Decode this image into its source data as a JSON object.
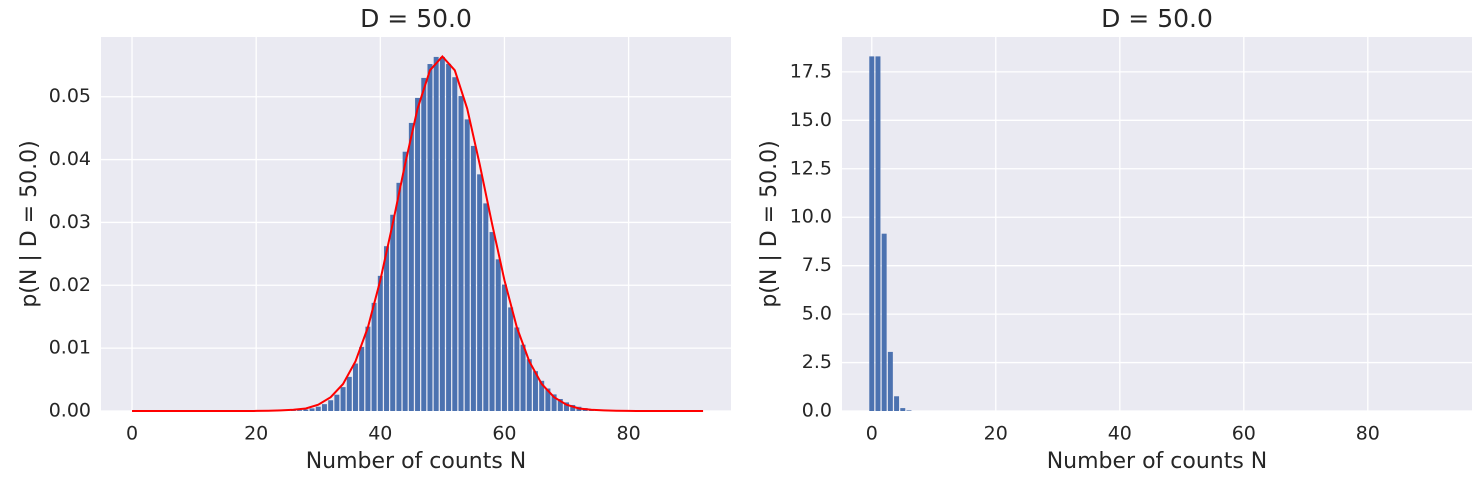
{
  "chart_data": [
    {
      "type": "bar",
      "title": "D = 50.0",
      "xlabel": "Number of counts N",
      "ylabel": "p(N | D = 50.0)",
      "xlim": [
        -5,
        96.5
      ],
      "ylim": [
        0,
        0.0595
      ],
      "xticks": [
        0,
        20,
        40,
        60,
        80
      ],
      "yticks": [
        {
          "value": 0,
          "label": "0.00"
        },
        0.01,
        0.02,
        0.03,
        0.04,
        0.05
      ],
      "grid": true,
      "series": [
        {
          "type": "bar",
          "color": "#4c72b0",
          "x": [
            23,
            24,
            25,
            26,
            27,
            28,
            29,
            30,
            31,
            32,
            33,
            34,
            35,
            36,
            37,
            38,
            39,
            40,
            41,
            42,
            43,
            44,
            45,
            46,
            47,
            48,
            49,
            50,
            51,
            52,
            53,
            54,
            55,
            56,
            57,
            58,
            59,
            60,
            61,
            62,
            63,
            64,
            65,
            66,
            67,
            68,
            69,
            70,
            71,
            72,
            73,
            74,
            75,
            76,
            77,
            78,
            79,
            80,
            81,
            82
          ],
          "values": [
            1e-05,
            2e-05,
            4e-05,
            7e-05,
            0.00013,
            0.00024,
            0.00041,
            0.00068,
            0.00109,
            0.00171,
            0.00259,
            0.0038,
            0.00543,
            0.00755,
            0.0102,
            0.01342,
            0.0172,
            0.0215,
            0.02622,
            0.03122,
            0.0363,
            0.04125,
            0.04583,
            0.04981,
            0.05299,
            0.0552,
            0.05633,
            0.05633,
            0.05523,
            0.0531,
            0.0501,
            0.04639,
            0.04217,
            0.03765,
            0.03303,
            0.02847,
            0.02413,
            0.02011,
            0.01648,
            0.01329,
            0.01055,
            0.00824,
            0.00634,
            0.0048,
            0.00358,
            0.00264,
            0.00191,
            0.00137,
            0.00096,
            0.00067,
            0.00046,
            0.00031,
            0.00021,
            0.00014,
            9e-05,
            6e-05,
            4e-05,
            2e-05,
            1e-05,
            1e-05
          ]
        },
        {
          "type": "line",
          "color": "#ff0000",
          "x": [
            0,
            2,
            4,
            6,
            8,
            10,
            12,
            14,
            16,
            18,
            20,
            22,
            24,
            26,
            28,
            30,
            32,
            34,
            36,
            38,
            40,
            42,
            44,
            46,
            48,
            50,
            52,
            54,
            56,
            58,
            60,
            62,
            64,
            66,
            68,
            70,
            72,
            74,
            76,
            78,
            80,
            82,
            84,
            86,
            88,
            90,
            92
          ],
          "values": [
            0,
            0,
            0,
            0,
            0,
            0,
            0,
            0,
            0,
            0,
            1e-05,
            4e-05,
            0.0001,
            0.0002,
            0.0004,
            0.001,
            0.0022,
            0.0043,
            0.0079,
            0.0133,
            0.0208,
            0.0298,
            0.0393,
            0.0481,
            0.0542,
            0.0564,
            0.0542,
            0.0481,
            0.0393,
            0.0298,
            0.0208,
            0.0133,
            0.0079,
            0.0043,
            0.0022,
            0.001,
            0.0004,
            0.0002,
            0.0001,
            4e-05,
            1e-05,
            0,
            0,
            0,
            0,
            0,
            0
          ]
        }
      ]
    },
    {
      "type": "bar",
      "title": "D = 50.0",
      "xlabel": "Number of counts N",
      "ylabel": "p(N | D = 50.0)",
      "xlim": [
        -4.8,
        96.8
      ],
      "ylim": [
        0,
        19.3
      ],
      "xticks": [
        0,
        20,
        40,
        60,
        80
      ],
      "yticks": [
        {
          "value": 0,
          "label": "0.0"
        },
        2.5,
        {
          "value": 5,
          "label": "5.0"
        },
        7.5,
        {
          "value": 10,
          "label": "10.0"
        },
        12.5,
        {
          "value": 15,
          "label": "15.0"
        },
        17.5
      ],
      "grid": true,
      "series": [
        {
          "type": "bar",
          "color": "#4c72b0",
          "x": [
            0,
            1,
            2,
            3,
            4,
            5,
            6
          ],
          "values": [
            18.3,
            18.3,
            9.15,
            3.05,
            0.76,
            0.15,
            0.03
          ]
        }
      ]
    }
  ]
}
